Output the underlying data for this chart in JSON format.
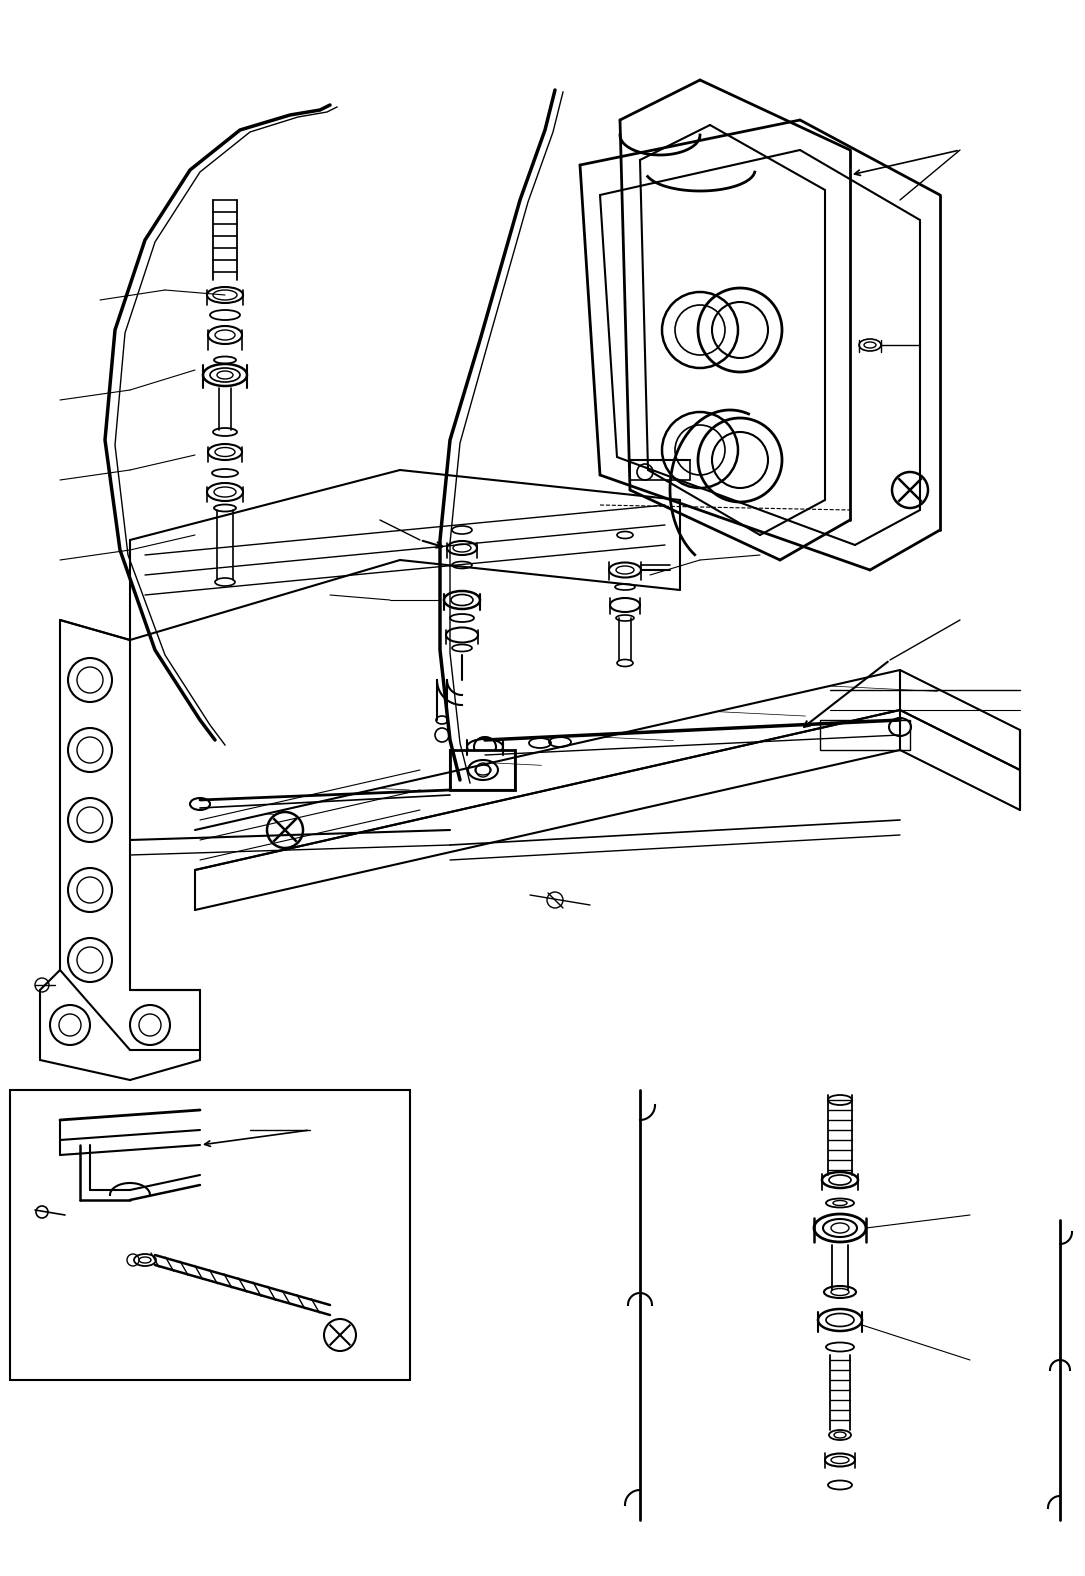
{
  "bg_color": "#ffffff",
  "lc": "#000000",
  "fig_w": 10.85,
  "fig_h": 15.76,
  "dpi": 100
}
